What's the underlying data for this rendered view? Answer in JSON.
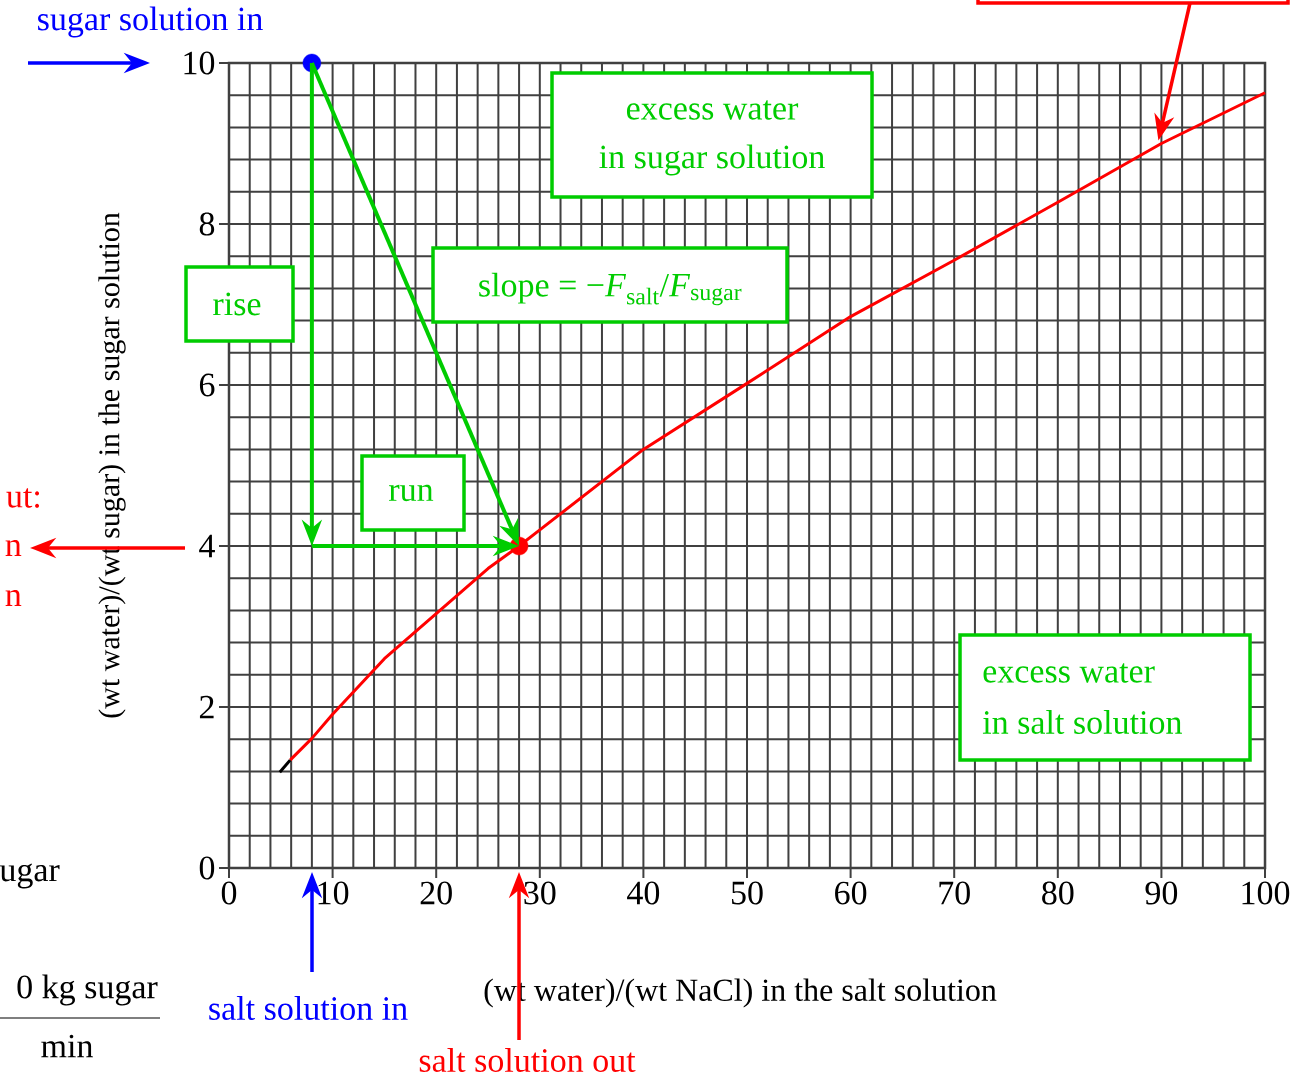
{
  "chart_data": {
    "type": "line",
    "xlabel": "(wt water)/(wt NaCl) in the salt solution",
    "ylabel": "(wt water)/(wt sugar) in the sugar solution",
    "xlim": [
      0,
      100
    ],
    "ylim": [
      0,
      10
    ],
    "xticks": [
      0,
      {
        "value": 2,
        "label": null
      },
      {
        "value": 4,
        "label": null
      },
      {
        "value": 6,
        "label": null
      },
      {
        "value": 8,
        "label": null
      },
      10,
      {
        "value": 12,
        "label": null
      },
      {
        "value": 14,
        "label": null
      },
      {
        "value": 16,
        "label": null
      },
      {
        "value": 18,
        "label": null
      },
      20,
      {
        "value": 22,
        "label": null
      },
      {
        "value": 24,
        "label": null
      },
      {
        "value": 26,
        "label": null
      },
      {
        "value": 28,
        "label": null
      },
      30,
      {
        "value": 32,
        "label": null
      },
      {
        "value": 34,
        "label": null
      },
      {
        "value": 36,
        "label": null
      },
      {
        "value": 38,
        "label": null
      },
      40,
      {
        "value": 42,
        "label": null
      },
      {
        "value": 44,
        "label": null
      },
      {
        "value": 46,
        "label": null
      },
      {
        "value": 48,
        "label": null
      },
      50,
      {
        "value": 52,
        "label": null
      },
      {
        "value": 54,
        "label": null
      },
      {
        "value": 56,
        "label": null
      },
      {
        "value": 58,
        "label": null
      },
      60,
      {
        "value": 62,
        "label": null
      },
      {
        "value": 64,
        "label": null
      },
      {
        "value": 66,
        "label": null
      },
      {
        "value": 68,
        "label": null
      },
      70,
      {
        "value": 72,
        "label": null
      },
      {
        "value": 74,
        "label": null
      },
      {
        "value": 76,
        "label": null
      },
      {
        "value": 78,
        "label": null
      },
      80,
      {
        "value": 82,
        "label": null
      },
      {
        "value": 84,
        "label": null
      },
      {
        "value": 86,
        "label": null
      },
      {
        "value": 88,
        "label": null
      },
      90,
      {
        "value": 92,
        "label": null
      },
      {
        "value": 94,
        "label": null
      },
      {
        "value": 96,
        "label": null
      },
      {
        "value": 98,
        "label": null
      },
      100
    ],
    "yticks": [
      0,
      {
        "value": 0.4,
        "label": null
      },
      {
        "value": 0.8,
        "label": null
      },
      {
        "value": 1.2,
        "label": null
      },
      {
        "value": 1.6,
        "label": null
      },
      2,
      {
        "value": 2.4,
        "label": null
      },
      {
        "value": 2.8,
        "label": null
      },
      {
        "value": 3.2,
        "label": null
      },
      {
        "value": 3.6,
        "label": null
      },
      4,
      {
        "value": 4.4,
        "label": null
      },
      {
        "value": 4.8,
        "label": null
      },
      {
        "value": 5.2,
        "label": null
      },
      {
        "value": 5.6,
        "label": null
      },
      6,
      {
        "value": 6.4,
        "label": null
      },
      {
        "value": 6.8,
        "label": null
      },
      {
        "value": 7.2,
        "label": null
      },
      {
        "value": 7.6,
        "label": null
      },
      8,
      {
        "value": 8.4,
        "label": null
      },
      {
        "value": 8.8,
        "label": null
      },
      {
        "value": 9.2,
        "label": null
      },
      {
        "value": 9.6,
        "label": null
      },
      10
    ],
    "grid": true,
    "series": [
      {
        "color": "#ff0000",
        "x": [
          5.9,
          8,
          10,
          15,
          20,
          25,
          28,
          30,
          40,
          50,
          60,
          70,
          80,
          90,
          100
        ],
        "values": [
          1.34,
          1.61,
          1.91,
          2.6,
          3.16,
          3.72,
          4.0,
          4.2,
          5.2,
          6.02,
          6.85,
          7.55,
          8.27,
          9.0,
          9.63
        ]
      },
      {
        "color": "#000000",
        "x": [
          4.9,
          5.9
        ],
        "values": [
          1.19,
          1.34
        ]
      },
      {
        "type": "scatter",
        "marker": "circle",
        "color": "#0000ff",
        "x": [
          8
        ],
        "values": [
          10
        ]
      },
      {
        "type": "scatter",
        "marker": "circle",
        "color": "#ff0000",
        "x": [
          28
        ],
        "values": [
          4
        ]
      }
    ],
    "annotations": [
      "sugar solution in",
      "salt solution in",
      "salt solution out",
      "excess water",
      "in sugar solution",
      "excess water",
      "in salt solution",
      "rise",
      "run",
      "slope = −*F*$_{salt}$/*F*$_{sugar}$",
      "ut:",
      "n",
      "n",
      "ugar",
      "0 kg sugar",
      "min"
    ]
  }
}
